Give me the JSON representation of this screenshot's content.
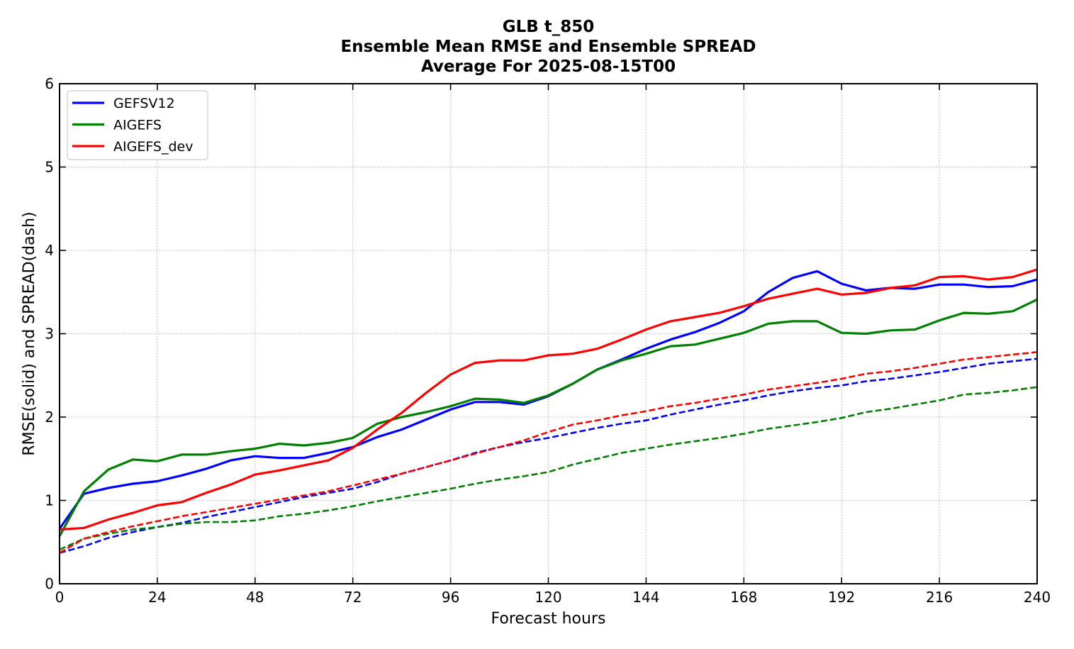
{
  "chart_data": {
    "type": "line",
    "title": [
      "GLB t_850",
      "Ensemble Mean RMSE and Ensemble SPREAD",
      "Average For 2025-08-15T00"
    ],
    "xlabel": "Forecast hours",
    "ylabel": "RMSE(solid) and SPREAD(dash)",
    "xlim": [
      0,
      240
    ],
    "ylim": [
      0,
      6
    ],
    "xticks": [
      0,
      24,
      48,
      72,
      96,
      120,
      144,
      168,
      192,
      216,
      240
    ],
    "yticks": [
      0,
      1,
      2,
      3,
      4,
      5,
      6
    ],
    "grid": true,
    "legend_position": "top-left",
    "x": [
      0,
      6,
      12,
      18,
      24,
      30,
      36,
      42,
      48,
      54,
      60,
      66,
      72,
      78,
      84,
      90,
      96,
      102,
      108,
      114,
      120,
      126,
      132,
      138,
      144,
      150,
      156,
      162,
      168,
      174,
      180,
      186,
      192,
      198,
      204,
      210,
      216,
      222,
      228,
      234,
      240
    ],
    "series": [
      {
        "name": "GEFSV12",
        "color": "#0000ff",
        "rmse": [
          0.66,
          1.08,
          1.15,
          1.2,
          1.23,
          1.3,
          1.38,
          1.48,
          1.53,
          1.51,
          1.51,
          1.57,
          1.64,
          1.76,
          1.85,
          1.97,
          2.09,
          2.18,
          2.18,
          2.15,
          2.25,
          2.4,
          2.57,
          2.69,
          2.82,
          2.93,
          3.02,
          3.13,
          3.27,
          3.5,
          3.67,
          3.75,
          3.6,
          3.52,
          3.55,
          3.54,
          3.59,
          3.59,
          3.56,
          3.57,
          3.65
        ],
        "spread": [
          0.37,
          0.45,
          0.55,
          0.62,
          0.68,
          0.73,
          0.8,
          0.86,
          0.92,
          0.98,
          1.04,
          1.09,
          1.14,
          1.22,
          1.32,
          1.4,
          1.48,
          1.57,
          1.64,
          1.7,
          1.75,
          1.81,
          1.87,
          1.92,
          1.96,
          2.03,
          2.09,
          2.15,
          2.2,
          2.26,
          2.31,
          2.35,
          2.38,
          2.43,
          2.46,
          2.5,
          2.54,
          2.59,
          2.64,
          2.67,
          2.7
        ]
      },
      {
        "name": "AIGEFS",
        "color": "#008000",
        "rmse": [
          0.57,
          1.11,
          1.37,
          1.49,
          1.47,
          1.55,
          1.55,
          1.59,
          1.62,
          1.68,
          1.66,
          1.69,
          1.75,
          1.92,
          2.0,
          2.06,
          2.13,
          2.22,
          2.21,
          2.17,
          2.26,
          2.4,
          2.57,
          2.68,
          2.76,
          2.85,
          2.87,
          2.94,
          3.01,
          3.12,
          3.15,
          3.15,
          3.01,
          3.0,
          3.04,
          3.05,
          3.16,
          3.25,
          3.24,
          3.27,
          3.41
        ],
        "spread": [
          0.41,
          0.54,
          0.6,
          0.65,
          0.68,
          0.72,
          0.74,
          0.74,
          0.76,
          0.81,
          0.84,
          0.88,
          0.93,
          0.99,
          1.04,
          1.09,
          1.14,
          1.2,
          1.25,
          1.29,
          1.34,
          1.43,
          1.5,
          1.57,
          1.62,
          1.67,
          1.71,
          1.75,
          1.8,
          1.86,
          1.9,
          1.94,
          1.99,
          2.06,
          2.1,
          2.15,
          2.2,
          2.27,
          2.29,
          2.32,
          2.36
        ]
      },
      {
        "name": "AIGEFS_dev",
        "color": "#ff0000",
        "rmse": [
          0.65,
          0.67,
          0.77,
          0.85,
          0.94,
          0.98,
          1.09,
          1.19,
          1.31,
          1.36,
          1.42,
          1.48,
          1.63,
          1.85,
          2.05,
          2.29,
          2.51,
          2.65,
          2.68,
          2.68,
          2.74,
          2.76,
          2.82,
          2.93,
          3.05,
          3.15,
          3.2,
          3.25,
          3.33,
          3.42,
          3.48,
          3.54,
          3.47,
          3.49,
          3.55,
          3.58,
          3.68,
          3.69,
          3.65,
          3.68,
          3.77
        ],
        "spread": [
          0.37,
          0.54,
          0.62,
          0.69,
          0.75,
          0.81,
          0.86,
          0.91,
          0.96,
          1.01,
          1.06,
          1.11,
          1.18,
          1.25,
          1.32,
          1.4,
          1.48,
          1.56,
          1.64,
          1.72,
          1.82,
          1.91,
          1.96,
          2.02,
          2.07,
          2.13,
          2.17,
          2.22,
          2.27,
          2.33,
          2.37,
          2.41,
          2.46,
          2.52,
          2.55,
          2.59,
          2.64,
          2.69,
          2.72,
          2.75,
          2.78
        ]
      }
    ]
  }
}
